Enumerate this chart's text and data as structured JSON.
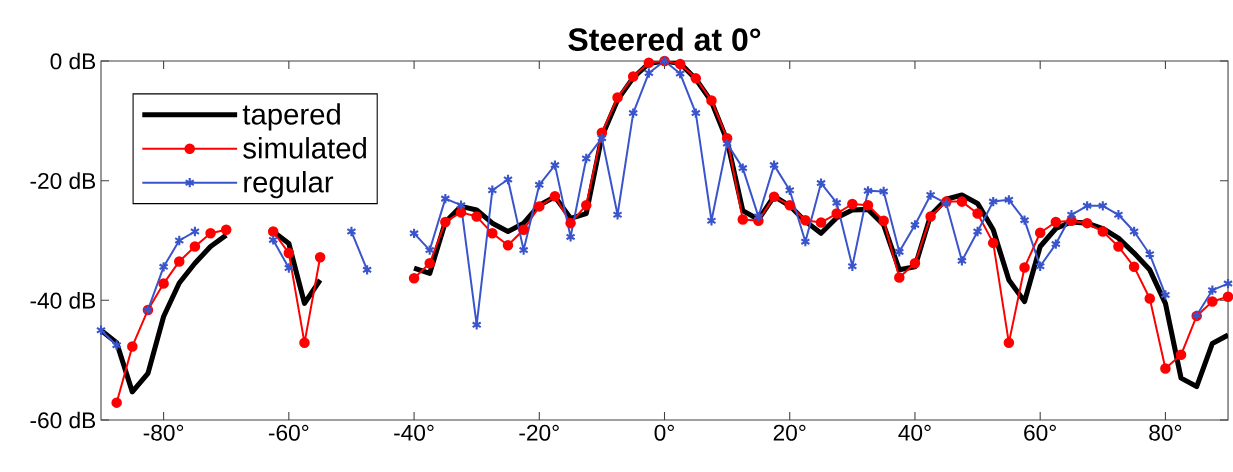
{
  "chart_data": {
    "type": "line",
    "title": "Steered at 0°",
    "x": [
      -90,
      -87.5,
      -85,
      -82.5,
      -80,
      -77.5,
      -75,
      -72.5,
      -70,
      -67.5,
      -65,
      -62.5,
      -60,
      -57.5,
      -55,
      -52.5,
      -50,
      -47.5,
      -45,
      -42.5,
      -40,
      -37.5,
      -35,
      -32.5,
      -30,
      -27.5,
      -25,
      -22.5,
      -20,
      -17.5,
      -15,
      -12.5,
      -10,
      -7.5,
      -5,
      -2.5,
      0,
      2.5,
      5,
      7.5,
      10,
      12.5,
      15,
      17.5,
      20,
      22.5,
      25,
      27.5,
      30,
      32.5,
      35,
      37.5,
      40,
      42.5,
      45,
      47.5,
      50,
      52.5,
      55,
      57.5,
      60,
      62.5,
      65,
      67.5,
      70,
      72.5,
      75,
      77.5,
      80,
      82.5,
      85,
      87.5,
      90
    ],
    "series": [
      {
        "name": "tapered",
        "color": "#000000",
        "marker": "none",
        "values": [
          -45.0,
          -47.1,
          -55.3,
          -52.2,
          -42.7,
          -37.1,
          -33.8,
          -31.0,
          -29.1,
          null,
          null,
          -28.5,
          -30.5,
          -40.5,
          -36.6,
          null,
          null,
          null,
          null,
          null,
          -34.6,
          -35.5,
          -26.9,
          -24.3,
          -24.9,
          -27.1,
          -28.5,
          -27.1,
          -24.1,
          -22.7,
          -26.3,
          -25.5,
          -12.6,
          -6.5,
          -2.8,
          -0.4,
          0,
          -0.4,
          -3.0,
          -6.8,
          -13.3,
          -25.0,
          -26.5,
          -22.6,
          -24.2,
          -26.8,
          -28.8,
          -26.2,
          -24.9,
          -24.8,
          -27.4,
          -34.9,
          -34.4,
          -25.8,
          -23.1,
          -22.4,
          -23.8,
          -28.2,
          -36.6,
          -40.2,
          -31.0,
          -28.0,
          -26.9,
          -27.1,
          -28.0,
          -29.6,
          -32.1,
          -34.9,
          -40.5,
          -53.0,
          -54.4,
          -47.2,
          -45.8
        ]
      },
      {
        "name": "simulated",
        "color": "#ff0000",
        "marker": "circle",
        "values": [
          null,
          -57.1,
          -47.7,
          -41.6,
          -37.2,
          -33.5,
          -31.0,
          -28.8,
          -28.2,
          null,
          null,
          -28.5,
          -32.1,
          -47.1,
          -32.8,
          null,
          null,
          null,
          null,
          null,
          -36.3,
          -33.8,
          -26.9,
          -25.3,
          -26.0,
          -28.8,
          -30.8,
          -28.2,
          -24.3,
          -22.6,
          -27.1,
          -24.1,
          -12.0,
          -6.1,
          -2.6,
          -0.3,
          0,
          -0.5,
          -2.9,
          -6.6,
          -12.9,
          -26.5,
          -26.7,
          -22.7,
          -24.1,
          -26.6,
          -27.0,
          -25.5,
          -23.9,
          -24.1,
          -26.7,
          -36.2,
          -33.8,
          -26.0,
          -23.5,
          -23.5,
          -25.5,
          -30.4,
          -47.1,
          -34.5,
          -28.7,
          -26.9,
          -26.7,
          -27.1,
          -28.5,
          -31.0,
          -34.4,
          -39.7,
          -51.4,
          -49.1,
          -42.6,
          -40.2,
          -39.4
        ]
      },
      {
        "name": "regular",
        "color": "#3a55cc",
        "marker": "cross",
        "values": [
          -45.0,
          -47.5,
          null,
          -41.6,
          -34.4,
          -30.0,
          -28.5,
          null,
          null,
          null,
          null,
          -29.9,
          -34.6,
          null,
          null,
          null,
          -28.5,
          -34.9,
          null,
          null,
          -28.8,
          -31.6,
          -23.0,
          -24.1,
          -44.1,
          -21.6,
          -19.8,
          -31.6,
          -20.7,
          -17.4,
          -29.4,
          -16.3,
          -12.9,
          -25.7,
          -8.7,
          -2.0,
          0,
          -2.1,
          -8.7,
          -26.7,
          -13.8,
          -17.9,
          -26.0,
          -17.4,
          -21.6,
          -30.2,
          -20.4,
          -23.7,
          -34.3,
          -21.7,
          -21.8,
          -31.9,
          -27.4,
          -22.4,
          -23.8,
          -33.4,
          -28.5,
          -23.5,
          -23.2,
          -26.6,
          -34.3,
          -30.6,
          -25.7,
          -24.2,
          -24.2,
          -25.7,
          -28.5,
          -32.3,
          -39.1,
          null,
          -42.5,
          -38.3,
          -37.2
        ]
      }
    ],
    "xlim": [
      -90,
      90
    ],
    "ylim": [
      -60,
      0
    ],
    "xticks": [
      {
        "value": -80,
        "label": "-80°"
      },
      {
        "value": -60,
        "label": "-60°"
      },
      {
        "value": -40,
        "label": "-40°"
      },
      {
        "value": -20,
        "label": "-20°"
      },
      {
        "value": 0,
        "label": "0°"
      },
      {
        "value": 20,
        "label": "20°"
      },
      {
        "value": 40,
        "label": "40°"
      },
      {
        "value": 60,
        "label": "60°"
      },
      {
        "value": 80,
        "label": "80°"
      }
    ],
    "yticks": [
      {
        "value": -60,
        "label": "-60 dB"
      },
      {
        "value": -40,
        "label": "-40 dB"
      },
      {
        "value": -20,
        "label": "-20 dB"
      },
      {
        "value": 0,
        "label": "0 dB"
      }
    ],
    "legend": "top left"
  }
}
